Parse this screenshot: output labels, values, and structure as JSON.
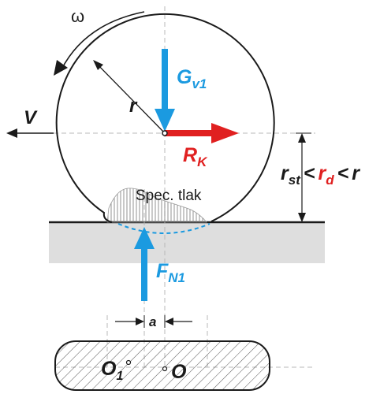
{
  "labels": {
    "omega": "ω",
    "radius": "r",
    "velocity": "V",
    "gravity_main": "G",
    "gravity_sub": "v1",
    "reaction_main": "R",
    "reaction_sub": "K",
    "normal_main": "F",
    "normal_sub": "N1",
    "pressure": "Spec. tlak",
    "offset": "a",
    "r_st_main": "r",
    "r_st_sub": "st",
    "lt1": "<",
    "r_d_main": "r",
    "r_d_sub": "d",
    "lt2": "<",
    "r_plain": "r",
    "o1_main": "O",
    "o1_sub": "1",
    "o_label": "O"
  },
  "colors": {
    "blue": "#1b9ae0",
    "red": "#e02020",
    "ground": "#dedede",
    "ink": "#1a1a1a"
  }
}
